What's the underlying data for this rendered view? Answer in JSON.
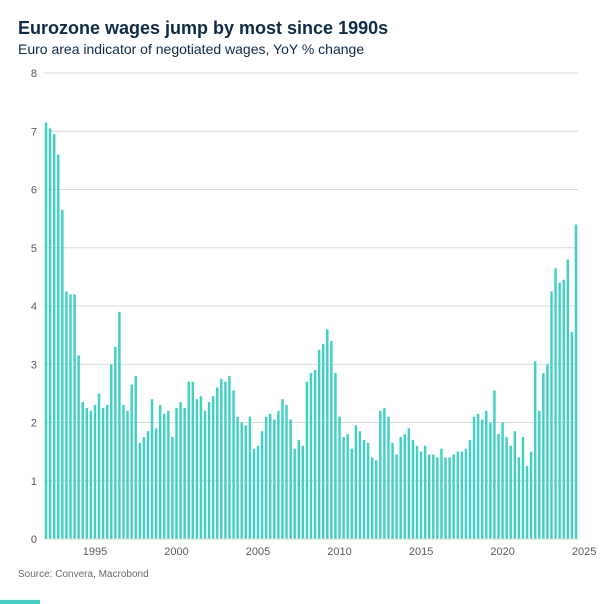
{
  "title": "Eurozone wages jump by most since 1990s",
  "subtitle": "Euro area indicator of negotiated wages, YoY % change",
  "source": "Source: Convera, Macrobond",
  "chart": {
    "type": "bar",
    "bar_color": "#3fd1c4",
    "background_color": "#ffffff",
    "grid_color": "#d9d9d9",
    "axis_color": "#d0d0d0",
    "tick_label_color": "#5a5a5a",
    "tick_label_fontsize": 11,
    "title_color": "#0e2a47",
    "title_fontsize": 18,
    "subtitle_fontsize": 14,
    "ylim": [
      0,
      8
    ],
    "ytick_step": 1,
    "bar_gap_ratio": 0.4,
    "x_start_year": 1992,
    "x_start_quarter": 1,
    "x_tick_years": [
      1995,
      2000,
      2005,
      2010,
      2015,
      2020,
      2025
    ],
    "values": [
      7.15,
      7.05,
      6.95,
      6.6,
      5.65,
      4.25,
      4.2,
      4.2,
      3.15,
      2.35,
      2.25,
      2.2,
      2.3,
      2.5,
      2.25,
      2.3,
      3.0,
      3.3,
      3.9,
      2.3,
      2.2,
      2.65,
      2.8,
      1.65,
      1.75,
      1.85,
      2.4,
      1.9,
      2.3,
      2.15,
      2.2,
      1.75,
      2.25,
      2.35,
      2.25,
      2.7,
      2.7,
      2.4,
      2.45,
      2.2,
      2.35,
      2.45,
      2.6,
      2.75,
      2.7,
      2.8,
      2.55,
      2.1,
      2.0,
      1.95,
      2.1,
      1.55,
      1.6,
      1.85,
      2.1,
      2.15,
      2.05,
      2.2,
      2.4,
      2.3,
      2.05,
      1.55,
      1.7,
      1.6,
      2.7,
      2.85,
      2.9,
      3.25,
      3.35,
      3.6,
      3.4,
      2.85,
      2.1,
      1.75,
      1.8,
      1.55,
      1.95,
      1.85,
      1.7,
      1.65,
      1.4,
      1.35,
      2.2,
      2.25,
      2.1,
      1.65,
      1.45,
      1.75,
      1.8,
      1.9,
      1.7,
      1.6,
      1.5,
      1.6,
      1.45,
      1.45,
      1.4,
      1.55,
      1.4,
      1.4,
      1.45,
      1.5,
      1.5,
      1.55,
      1.7,
      2.1,
      2.15,
      2.05,
      2.2,
      2.0,
      2.55,
      1.8,
      2.0,
      1.75,
      1.6,
      1.85,
      1.4,
      1.75,
      1.25,
      1.5,
      3.05,
      2.2,
      2.85,
      3.0,
      4.25,
      4.65,
      4.4,
      4.45,
      4.8,
      3.55,
      5.4
    ]
  },
  "decoration_bar_color": "#3fd1c4"
}
